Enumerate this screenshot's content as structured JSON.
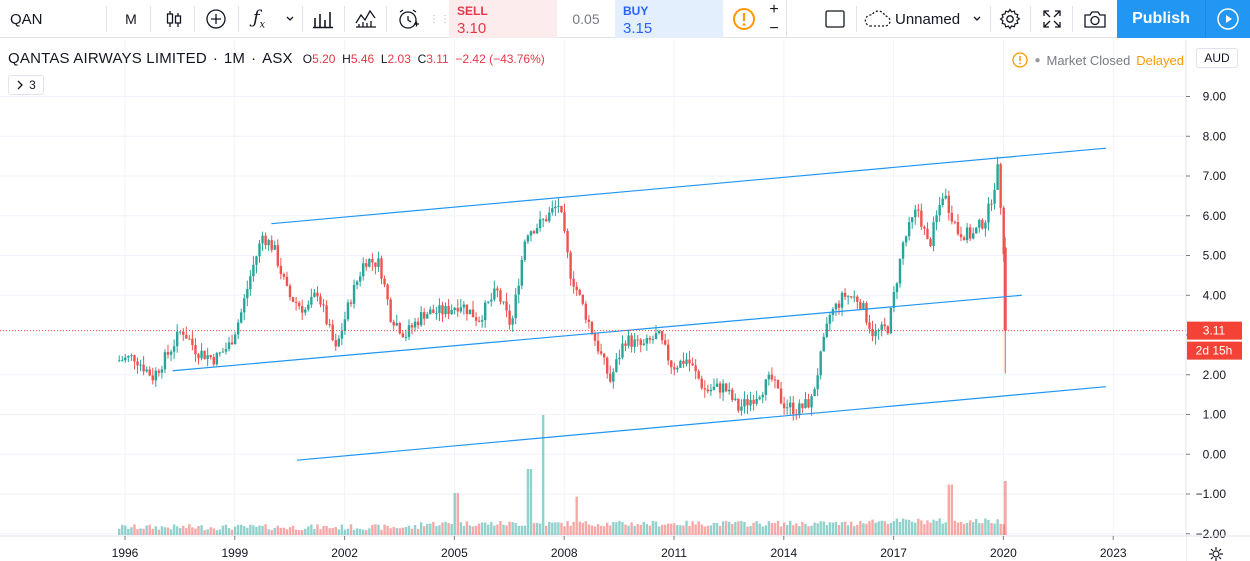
{
  "toolbar": {
    "symbol": "QAN",
    "interval": "M",
    "template_name": "Unnamed",
    "sell_label": "SELL",
    "sell_price": "3.10",
    "spread": "0.05",
    "buy_label": "BUY",
    "buy_price": "3.15",
    "publish_label": "Publish",
    "plus": "+",
    "minus": "−"
  },
  "legend": {
    "name": "QANTAS AIRWAYS LIMITED",
    "interval": "1M",
    "exchange": "ASX",
    "o_label": "O",
    "o_value": "5.20",
    "h_label": "H",
    "h_value": "5.46",
    "l_label": "L",
    "l_value": "2.03",
    "c_label": "C",
    "c_value": "3.11",
    "change": "−2.42 (−43.76%)",
    "collapse_count": "3"
  },
  "status": {
    "market": "Market Closed",
    "delayed": "Delayed",
    "currency": "AUD"
  },
  "price_axis": {
    "ticks": [
      "9.00",
      "8.00",
      "7.00",
      "6.00",
      "5.00",
      "4.00",
      "3.00",
      "2.00",
      "1.00",
      "0.00",
      "−1.00",
      "−2.00"
    ],
    "last_price": "3.11",
    "countdown": "2d 15h"
  },
  "colors": {
    "up": "#26a69a",
    "down": "#ef5350",
    "trendline": "#2196f3",
    "accent": "#2196f3",
    "price_line": "#f44336"
  },
  "chart_data": {
    "type": "candlestick",
    "title": "QANTAS AIRWAYS LIMITED, 1M, ASX",
    "x_ticks": [
      "1996",
      "1999",
      "2002",
      "2005",
      "2008",
      "2011",
      "2014",
      "2017",
      "2020",
      "2023"
    ],
    "ylim": [
      -2.1,
      9.6
    ],
    "last": {
      "open": 5.2,
      "high": 5.46,
      "low": 2.03,
      "close": 3.11
    },
    "price_path": [
      {
        "t": 1995.8,
        "p": 2.35
      },
      {
        "t": 1996.3,
        "p": 2.45
      },
      {
        "t": 1996.8,
        "p": 1.95
      },
      {
        "t": 1997.2,
        "p": 2.5
      },
      {
        "t": 1997.6,
        "p": 3.15
      },
      {
        "t": 1998.0,
        "p": 2.6
      },
      {
        "t": 1998.5,
        "p": 2.4
      },
      {
        "t": 1998.9,
        "p": 2.75
      },
      {
        "t": 1999.2,
        "p": 3.5
      },
      {
        "t": 1999.5,
        "p": 4.6
      },
      {
        "t": 1999.8,
        "p": 5.5
      },
      {
        "t": 2000.1,
        "p": 5.2
      },
      {
        "t": 2000.5,
        "p": 4.0
      },
      {
        "t": 2001.0,
        "p": 3.6
      },
      {
        "t": 2001.3,
        "p": 4.1
      },
      {
        "t": 2001.8,
        "p": 2.6
      },
      {
        "t": 2002.2,
        "p": 3.9
      },
      {
        "t": 2002.6,
        "p": 4.9
      },
      {
        "t": 2003.0,
        "p": 4.8
      },
      {
        "t": 2003.3,
        "p": 3.5
      },
      {
        "t": 2003.7,
        "p": 3.0
      },
      {
        "t": 2004.2,
        "p": 3.55
      },
      {
        "t": 2004.8,
        "p": 3.6
      },
      {
        "t": 2005.2,
        "p": 3.8
      },
      {
        "t": 2005.7,
        "p": 3.4
      },
      {
        "t": 2006.2,
        "p": 4.1
      },
      {
        "t": 2006.6,
        "p": 3.2
      },
      {
        "t": 2007.0,
        "p": 5.6
      },
      {
        "t": 2007.4,
        "p": 5.8
      },
      {
        "t": 2007.9,
        "p": 6.3
      },
      {
        "t": 2008.2,
        "p": 4.6
      },
      {
        "t": 2008.6,
        "p": 3.6
      },
      {
        "t": 2009.0,
        "p": 2.6
      },
      {
        "t": 2009.3,
        "p": 1.85
      },
      {
        "t": 2009.7,
        "p": 2.9
      },
      {
        "t": 2010.2,
        "p": 2.7
      },
      {
        "t": 2010.6,
        "p": 3.0
      },
      {
        "t": 2011.0,
        "p": 2.2
      },
      {
        "t": 2011.4,
        "p": 2.4
      },
      {
        "t": 2011.9,
        "p": 1.6
      },
      {
        "t": 2012.4,
        "p": 1.7
      },
      {
        "t": 2012.8,
        "p": 1.15
      },
      {
        "t": 2013.3,
        "p": 1.5
      },
      {
        "t": 2013.7,
        "p": 1.9
      },
      {
        "t": 2014.0,
        "p": 1.3
      },
      {
        "t": 2014.4,
        "p": 1.1
      },
      {
        "t": 2014.8,
        "p": 1.35
      },
      {
        "t": 2015.3,
        "p": 3.5
      },
      {
        "t": 2015.7,
        "p": 4.0
      },
      {
        "t": 2016.1,
        "p": 3.9
      },
      {
        "t": 2016.5,
        "p": 3.0
      },
      {
        "t": 2016.9,
        "p": 3.2
      },
      {
        "t": 2017.3,
        "p": 5.3
      },
      {
        "t": 2017.7,
        "p": 6.2
      },
      {
        "t": 2018.0,
        "p": 5.2
      },
      {
        "t": 2018.4,
        "p": 6.6
      },
      {
        "t": 2018.8,
        "p": 5.6
      },
      {
        "t": 2019.2,
        "p": 5.5
      },
      {
        "t": 2019.6,
        "p": 6.0
      },
      {
        "t": 2019.9,
        "p": 7.2
      },
      {
        "t": 2020.05,
        "p": 5.2
      }
    ],
    "channel_lines": [
      {
        "start": {
          "t": 2000.0,
          "p": 5.8
        },
        "end": {
          "t": 2022.8,
          "p": 7.7
        }
      },
      {
        "start": {
          "t": 1997.3,
          "p": 2.1
        },
        "end": {
          "t": 2020.5,
          "p": 4.0
        }
      },
      {
        "start": {
          "t": 2000.7,
          "p": -0.15
        },
        "end": {
          "t": 2022.8,
          "p": 1.7
        }
      }
    ],
    "volume_spikes": [
      {
        "t": 2005.0,
        "v": 0.35
      },
      {
        "t": 2007.0,
        "v": 0.55
      },
      {
        "t": 2007.4,
        "v": 1.0
      },
      {
        "t": 2008.3,
        "v": 0.32
      },
      {
        "t": 2018.5,
        "v": 0.42
      },
      {
        "t": 2020.05,
        "v": 0.45
      }
    ]
  }
}
